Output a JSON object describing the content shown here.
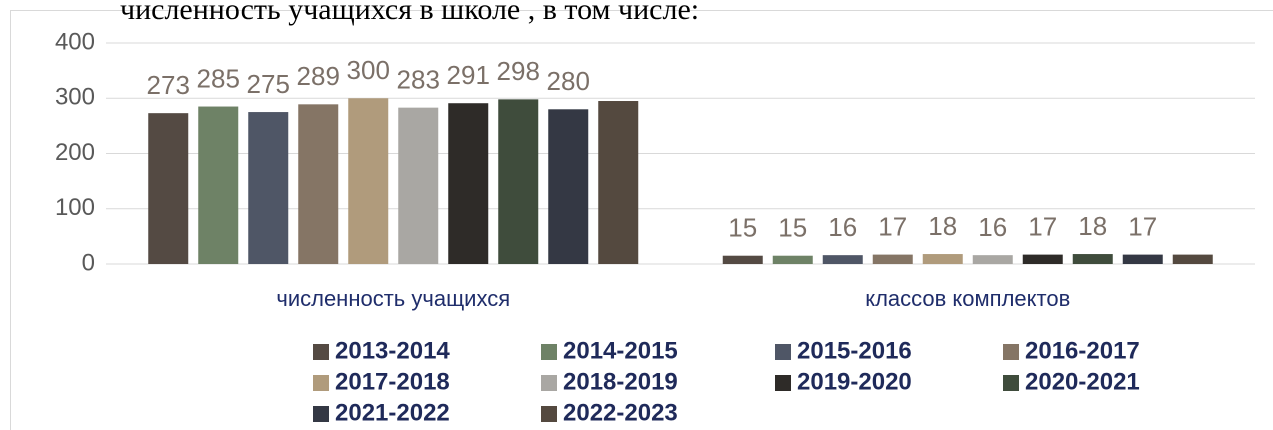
{
  "chart_data": {
    "type": "bar",
    "title": "численность учащихся  в школе , в том числе:",
    "categories": [
      "численность учащихся",
      "классов комплектов"
    ],
    "series": [
      {
        "name": "2013-2014",
        "color": "#544a43",
        "values": [
          273,
          15
        ]
      },
      {
        "name": "2014-2015",
        "color": "#6e8266",
        "values": [
          285,
          15
        ]
      },
      {
        "name": "2015-2016",
        "color": "#4f5666",
        "values": [
          275,
          16
        ]
      },
      {
        "name": "2016-2017",
        "color": "#857565",
        "values": [
          289,
          17
        ]
      },
      {
        "name": "2017-2018",
        "color": "#b09b7c",
        "values": [
          300,
          18
        ]
      },
      {
        "name": "2018-2019",
        "color": "#a9a7a3",
        "values": [
          283,
          16
        ]
      },
      {
        "name": "2019-2020",
        "color": "#2e2b28",
        "values": [
          291,
          17
        ]
      },
      {
        "name": "2020-2021",
        "color": "#3f4c3c",
        "values": [
          298,
          18
        ]
      },
      {
        "name": "2021-2022",
        "color": "#343844",
        "values": [
          280,
          17
        ]
      },
      {
        "name": "2022-2023",
        "color": "#54493f",
        "values": [
          295,
          17
        ],
        "show_labels": false
      }
    ],
    "ylim": [
      0,
      400
    ],
    "yticks": [
      0,
      100,
      200,
      300,
      400
    ],
    "grid": true,
    "legend": "bottom"
  }
}
